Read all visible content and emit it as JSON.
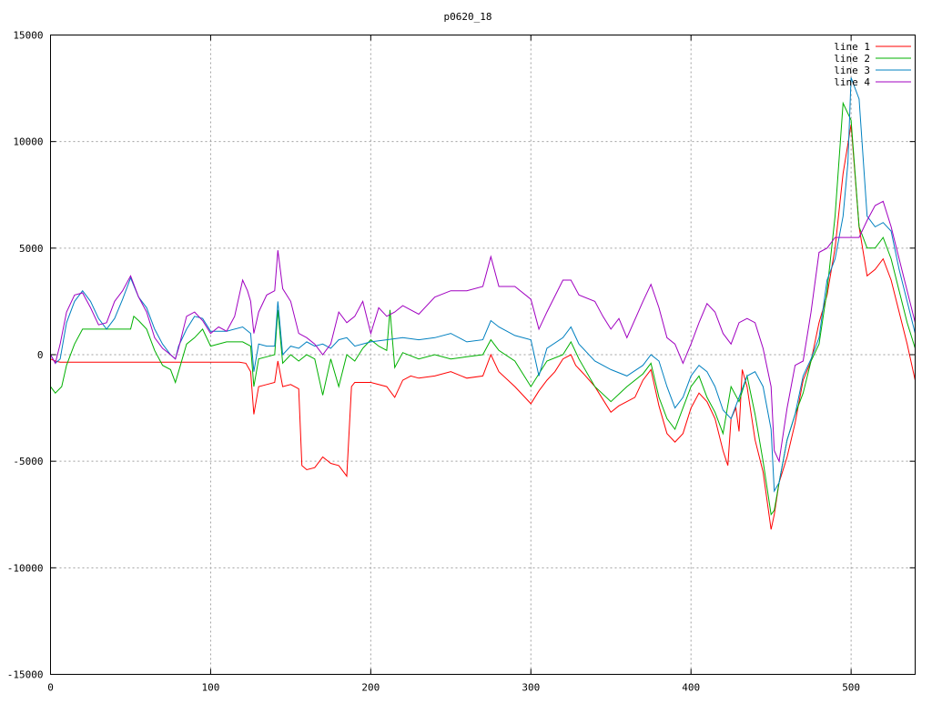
{
  "chart_data": {
    "type": "line",
    "title": "p0620_18",
    "xlim": [
      0,
      540
    ],
    "ylim": [
      -15000,
      15000
    ],
    "x_ticks": [
      0,
      100,
      200,
      300,
      400,
      500
    ],
    "y_ticks": [
      -15000,
      -10000,
      -5000,
      0,
      5000,
      10000,
      15000
    ],
    "grid": true,
    "legend_position": "top-right",
    "series": [
      {
        "name": "line 1",
        "color": "#ff0000",
        "x": [
          0,
          3,
          6,
          10,
          20,
          40,
          60,
          80,
          100,
          118,
          122,
          125,
          127,
          130,
          135,
          140,
          142,
          145,
          150,
          155,
          157,
          160,
          165,
          170,
          175,
          180,
          185,
          188,
          190,
          200,
          210,
          215,
          220,
          225,
          230,
          240,
          250,
          260,
          270,
          275,
          280,
          290,
          300,
          305,
          310,
          315,
          320,
          325,
          328,
          333,
          340,
          345,
          350,
          355,
          360,
          365,
          370,
          375,
          380,
          385,
          390,
          395,
          400,
          405,
          410,
          415,
          420,
          423,
          425,
          428,
          430,
          432,
          435,
          440,
          445,
          450,
          452,
          455,
          460,
          465,
          470,
          475,
          480,
          485,
          490,
          495,
          500,
          505,
          510,
          515,
          520,
          525,
          530,
          535,
          540
        ],
        "y": [
          -200,
          -300,
          -350,
          -350,
          -350,
          -350,
          -350,
          -350,
          -350,
          -350,
          -400,
          -800,
          -2800,
          -1500,
          -1400,
          -1300,
          -300,
          -1500,
          -1400,
          -1600,
          -5200,
          -5400,
          -5300,
          -4800,
          -5100,
          -5200,
          -5700,
          -1500,
          -1300,
          -1300,
          -1500,
          -2000,
          -1200,
          -1000,
          -1100,
          -1000,
          -800,
          -1100,
          -1000,
          0,
          -800,
          -1500,
          -2300,
          -1700,
          -1200,
          -800,
          -200,
          0,
          -500,
          -900,
          -1500,
          -2100,
          -2700,
          -2400,
          -2200,
          -2000,
          -1200,
          -700,
          -2400,
          -3700,
          -4100,
          -3700,
          -2500,
          -1800,
          -2200,
          -3000,
          -4500,
          -5200,
          -3000,
          -2500,
          -3600,
          -700,
          -1500,
          -4000,
          -5500,
          -8200,
          -7500,
          -6000,
          -4800,
          -3200,
          -1200,
          -300,
          1500,
          2800,
          5000,
          8500,
          10800,
          6000,
          3700,
          4000,
          4500,
          3500,
          2000,
          500,
          -1200
        ]
      },
      {
        "name": "line 2",
        "color": "#00b000",
        "x": [
          0,
          3,
          7,
          10,
          15,
          20,
          30,
          40,
          50,
          52,
          55,
          60,
          65,
          70,
          75,
          78,
          80,
          85,
          90,
          95,
          100,
          110,
          120,
          125,
          127,
          130,
          135,
          140,
          142,
          145,
          150,
          155,
          160,
          165,
          170,
          175,
          180,
          185,
          190,
          195,
          200,
          205,
          210,
          212,
          215,
          220,
          230,
          240,
          250,
          260,
          270,
          275,
          280,
          290,
          300,
          310,
          320,
          325,
          330,
          340,
          350,
          360,
          370,
          375,
          380,
          385,
          390,
          395,
          400,
          405,
          410,
          415,
          420,
          425,
          430,
          435,
          440,
          445,
          450,
          452,
          455,
          460,
          465,
          470,
          475,
          480,
          485,
          490,
          495,
          500,
          505,
          510,
          515,
          520,
          525,
          530,
          535,
          540
        ],
        "y": [
          -1500,
          -1800,
          -1500,
          -500,
          500,
          1200,
          1200,
          1200,
          1200,
          1800,
          1600,
          1200,
          200,
          -500,
          -700,
          -1300,
          -800,
          500,
          800,
          1200,
          400,
          600,
          600,
          400,
          -1500,
          -200,
          -100,
          0,
          2100,
          -400,
          0,
          -300,
          0,
          -200,
          -1900,
          -200,
          -1500,
          0,
          -300,
          300,
          700,
          400,
          200,
          2100,
          -600,
          100,
          -200,
          0,
          -200,
          -100,
          0,
          700,
          200,
          -300,
          -1500,
          -300,
          0,
          600,
          -200,
          -1500,
          -2200,
          -1500,
          -900,
          -400,
          -2000,
          -3000,
          -3500,
          -2500,
          -1500,
          -1000,
          -2000,
          -2700,
          -3700,
          -1500,
          -2200,
          -1000,
          -2800,
          -5000,
          -7500,
          -7300,
          -6000,
          -4000,
          -2800,
          -1800,
          -300,
          500,
          3000,
          6500,
          11800,
          11000,
          6000,
          5000,
          5000,
          5500,
          4500,
          3000,
          1500,
          300
        ]
      },
      {
        "name": "line 3",
        "color": "#0080c0",
        "x": [
          0,
          3,
          6,
          10,
          15,
          20,
          25,
          30,
          35,
          40,
          45,
          50,
          55,
          60,
          65,
          70,
          75,
          78,
          80,
          85,
          90,
          95,
          100,
          110,
          120,
          125,
          127,
          130,
          135,
          140,
          142,
          145,
          150,
          155,
          160,
          165,
          170,
          175,
          180,
          185,
          190,
          200,
          210,
          220,
          230,
          240,
          250,
          260,
          270,
          275,
          280,
          290,
          300,
          305,
          310,
          320,
          325,
          330,
          340,
          350,
          360,
          370,
          375,
          380,
          385,
          390,
          395,
          400,
          405,
          410,
          415,
          420,
          425,
          430,
          435,
          440,
          445,
          450,
          452,
          455,
          460,
          465,
          470,
          475,
          480,
          485,
          490,
          495,
          498,
          500,
          505,
          510,
          515,
          520,
          525,
          530,
          535,
          540
        ],
        "y": [
          0,
          -400,
          -200,
          1500,
          2500,
          3000,
          2500,
          1700,
          1200,
          1700,
          2600,
          3600,
          2700,
          2200,
          1200,
          500,
          0,
          -200,
          400,
          1200,
          1800,
          1700,
          1100,
          1100,
          1300,
          1000,
          -800,
          500,
          400,
          400,
          2500,
          0,
          400,
          300,
          600,
          400,
          500,
          300,
          700,
          800,
          400,
          600,
          700,
          800,
          700,
          800,
          1000,
          600,
          700,
          1600,
          1300,
          900,
          700,
          -1000,
          300,
          800,
          1300,
          500,
          -300,
          -700,
          -1000,
          -500,
          0,
          -300,
          -1500,
          -2500,
          -2000,
          -1000,
          -500,
          -800,
          -1500,
          -2600,
          -3000,
          -2000,
          -1000,
          -800,
          -1500,
          -3500,
          -6400,
          -6000,
          -4000,
          -2800,
          -1000,
          -200,
          800,
          3500,
          4500,
          6500,
          9000,
          13000,
          12000,
          6500,
          6000,
          6200,
          5800,
          4000,
          2500,
          1000
        ]
      },
      {
        "name": "line 4",
        "color": "#a000c0",
        "x": [
          0,
          3,
          6,
          10,
          15,
          20,
          25,
          30,
          35,
          40,
          45,
          50,
          55,
          60,
          65,
          70,
          75,
          78,
          80,
          85,
          90,
          95,
          100,
          105,
          110,
          115,
          120,
          123,
          125,
          127,
          130,
          135,
          140,
          142,
          145,
          150,
          155,
          160,
          165,
          170,
          175,
          180,
          185,
          190,
          195,
          200,
          205,
          210,
          215,
          220,
          230,
          240,
          250,
          260,
          270,
          275,
          280,
          290,
          300,
          305,
          310,
          320,
          325,
          330,
          340,
          345,
          350,
          355,
          360,
          370,
          375,
          380,
          385,
          390,
          395,
          400,
          405,
          410,
          415,
          420,
          425,
          430,
          435,
          440,
          445,
          450,
          452,
          455,
          460,
          465,
          470,
          475,
          480,
          485,
          490,
          495,
          500,
          505,
          510,
          515,
          520,
          525,
          530,
          535,
          540
        ],
        "y": [
          0,
          -400,
          500,
          2000,
          2800,
          2900,
          2200,
          1400,
          1500,
          2500,
          3000,
          3700,
          2700,
          2000,
          800,
          300,
          0,
          -200,
          300,
          1800,
          2000,
          1600,
          1000,
          1300,
          1100,
          1800,
          3500,
          3000,
          2500,
          1000,
          2000,
          2800,
          3000,
          4900,
          3100,
          2500,
          1000,
          800,
          500,
          0,
          500,
          2000,
          1500,
          1800,
          2500,
          1000,
          2200,
          1800,
          2000,
          2300,
          1900,
          2700,
          3000,
          3000,
          3200,
          4600,
          3200,
          3200,
          2600,
          1200,
          2000,
          3500,
          3500,
          2800,
          2500,
          1800,
          1200,
          1700,
          800,
          2500,
          3300,
          2200,
          800,
          500,
          -400,
          500,
          1500,
          2400,
          2000,
          1000,
          500,
          1500,
          1700,
          1500,
          300,
          -1500,
          -4500,
          -5000,
          -2500,
          -500,
          -300,
          2000,
          4800,
          5000,
          5500,
          5500,
          5500,
          5500,
          6300,
          7000,
          7200,
          6000,
          4500,
          3000,
          1500
        ]
      }
    ]
  }
}
